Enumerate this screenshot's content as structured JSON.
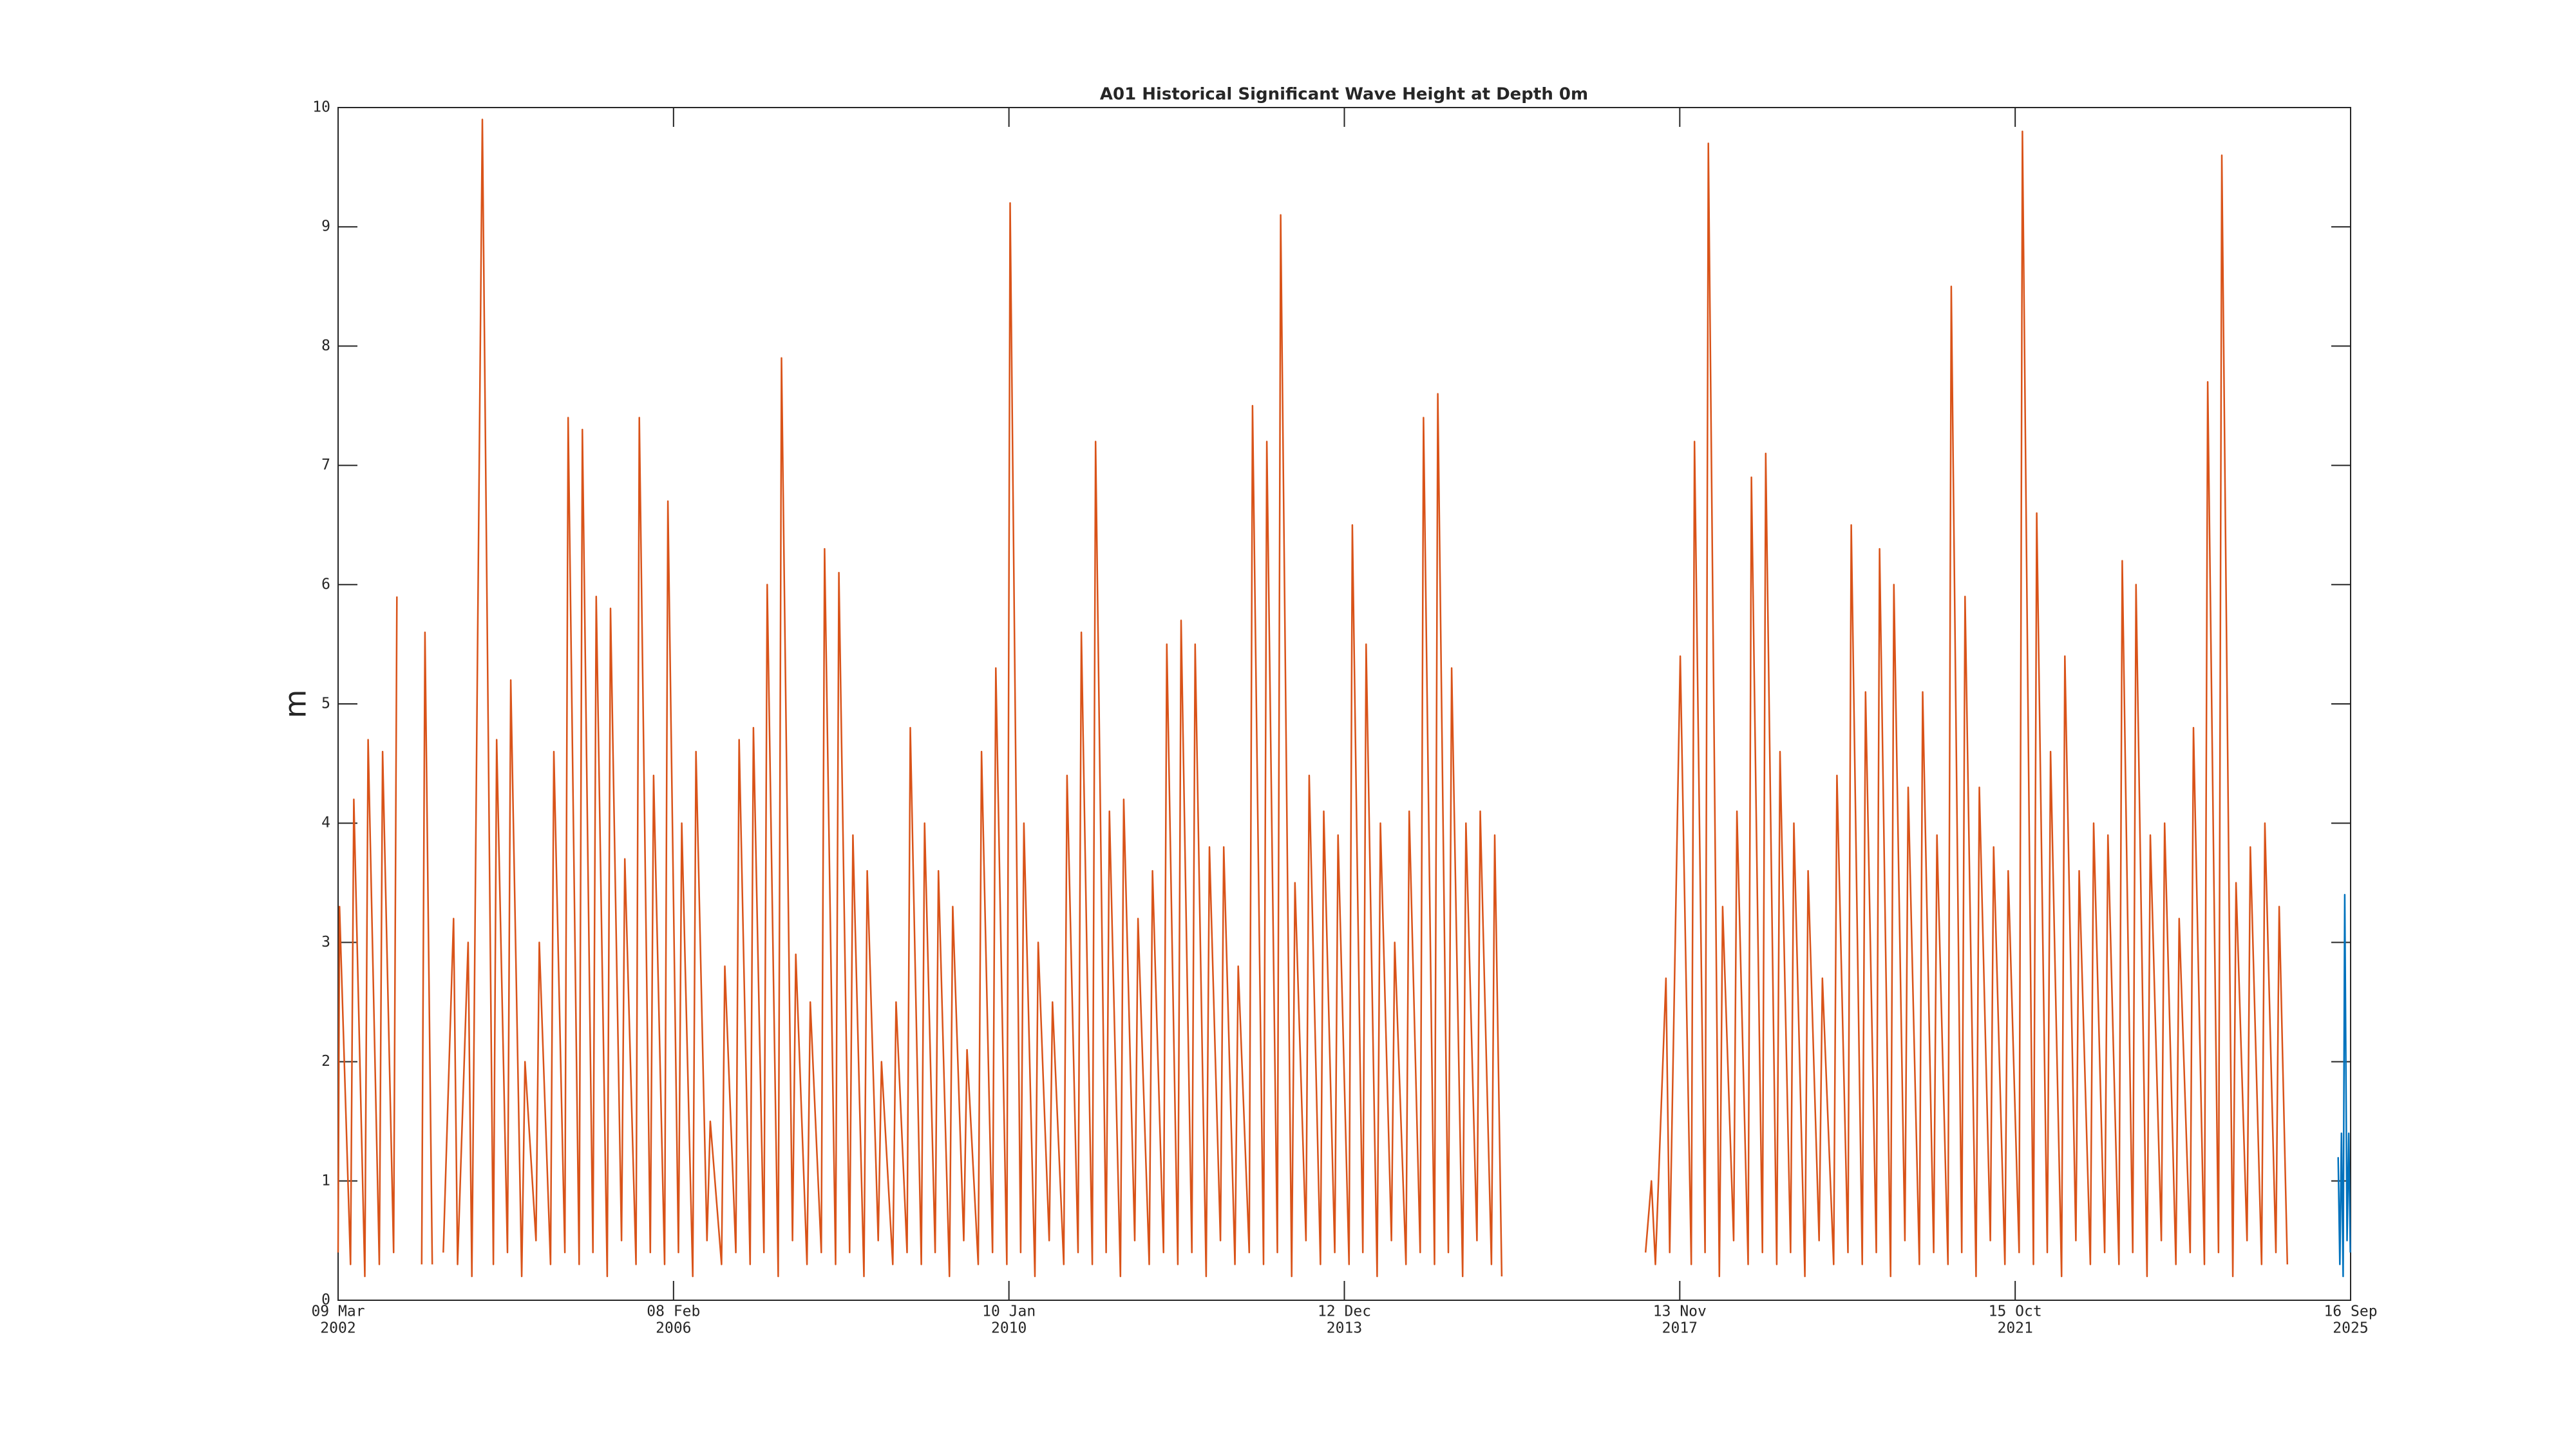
{
  "chart_data": {
    "type": "line",
    "title": "A01 Historical Significant Wave Height at Depth 0m",
    "ylabel": "m",
    "xlim": [
      "2002-03-09",
      "2025-09-16"
    ],
    "xticks": [
      {
        "value": "2002-03-09",
        "label": [
          "09 Mar",
          "2002"
        ]
      },
      {
        "value": "2006-02-08",
        "label": [
          "08 Feb",
          "2006"
        ]
      },
      {
        "value": "2010-01-10",
        "label": [
          "10 Jan",
          "2010"
        ]
      },
      {
        "value": "2013-12-12",
        "label": [
          "12 Dec",
          "2013"
        ]
      },
      {
        "value": "2017-11-13",
        "label": [
          "13 Nov",
          "2017"
        ]
      },
      {
        "value": "2021-10-15",
        "label": [
          "15 Oct",
          "2021"
        ]
      },
      {
        "value": "2025-09-16",
        "label": [
          "16 Sep",
          "2025"
        ]
      }
    ],
    "ylim": [
      0,
      10
    ],
    "yticks": [
      0,
      1,
      2,
      3,
      4,
      5,
      6,
      7,
      8,
      9,
      10
    ],
    "series": [
      {
        "color": "#d95319",
        "x": [
          "2002-03-09",
          "2002-03-15",
          "2002-05-01",
          "2002-05-15",
          "2002-07-01",
          "2002-07-15",
          "2002-09-01",
          "2002-09-15",
          "2002-11-01",
          "2002-11-15",
          "2003-01-01",
          "2003-03-01",
          "2003-03-15",
          "2003-04-15",
          "2003-05-01",
          "2003-06-01",
          "2003-07-15",
          "2003-08-01",
          "2003-09-15",
          "2003-10-01",
          "2003-11-15",
          "2004-01-01",
          "2004-01-15",
          "2004-03-01",
          "2004-03-15",
          "2004-05-01",
          "2004-05-15",
          "2004-07-01",
          "2004-07-15",
          "2004-09-01",
          "2004-09-15",
          "2004-11-01",
          "2004-11-15",
          "2005-01-01",
          "2005-01-15",
          "2005-03-01",
          "2005-03-15",
          "2005-05-01",
          "2005-05-15",
          "2005-07-01",
          "2005-07-15",
          "2005-09-01",
          "2005-09-15",
          "2005-11-01",
          "2005-11-15",
          "2006-01-01",
          "2006-01-15",
          "2006-03-01",
          "2006-03-15",
          "2006-05-01",
          "2006-05-15",
          "2006-07-01",
          "2006-07-15",
          "2006-09-01",
          "2006-09-15",
          "2006-11-01",
          "2006-11-15",
          "2007-01-01",
          "2007-01-15",
          "2007-03-01",
          "2007-03-15",
          "2007-05-01",
          "2007-05-15",
          "2007-07-01",
          "2007-07-15",
          "2007-09-01",
          "2007-09-15",
          "2007-11-01",
          "2007-11-15",
          "2008-01-01",
          "2008-01-15",
          "2008-03-01",
          "2008-03-15",
          "2008-05-01",
          "2008-05-15",
          "2008-07-01",
          "2008-07-15",
          "2008-09-01",
          "2008-09-15",
          "2008-11-01",
          "2008-11-15",
          "2009-01-01",
          "2009-01-15",
          "2009-03-01",
          "2009-03-15",
          "2009-05-01",
          "2009-05-15",
          "2009-07-01",
          "2009-07-15",
          "2009-09-01",
          "2009-09-15",
          "2009-11-01",
          "2009-11-15",
          "2010-01-01",
          "2010-01-15",
          "2010-03-01",
          "2010-03-15",
          "2010-05-01",
          "2010-05-15",
          "2010-07-01",
          "2010-07-15",
          "2010-09-01",
          "2010-09-15",
          "2010-11-01",
          "2010-11-15",
          "2011-01-01",
          "2011-01-15",
          "2011-03-01",
          "2011-03-15",
          "2011-05-01",
          "2011-05-15",
          "2011-07-01",
          "2011-07-15",
          "2011-09-01",
          "2011-09-15",
          "2011-11-01",
          "2011-11-15",
          "2012-01-01",
          "2012-01-15",
          "2012-03-01",
          "2012-03-15",
          "2012-05-01",
          "2012-05-15",
          "2012-07-01",
          "2012-07-15",
          "2012-09-01",
          "2012-09-15",
          "2012-11-01",
          "2012-11-15",
          "2013-01-01",
          "2013-01-15",
          "2013-03-01",
          "2013-03-15",
          "2013-05-01",
          "2013-05-15",
          "2013-07-01",
          "2013-07-15",
          "2013-09-01",
          "2013-09-15",
          "2013-11-01",
          "2013-11-15",
          "2014-01-01",
          "2014-01-15",
          "2014-03-01",
          "2014-03-15",
          "2014-05-01",
          "2014-05-15",
          "2014-07-01",
          "2014-07-15",
          "2014-09-01",
          "2014-09-15",
          "2014-11-01",
          "2014-11-15",
          "2015-01-01",
          "2015-01-15",
          "2015-03-01",
          "2015-03-15",
          "2015-05-01",
          "2015-05-15",
          "2015-07-01",
          "2015-07-15",
          "2015-09-01",
          "2015-09-15",
          "2015-10-15",
          "2015-11-01",
          "2017-06-20",
          "2017-07-15",
          "2017-08-01",
          "2017-09-15",
          "2017-10-01",
          "2017-11-15",
          "2018-01-01",
          "2018-01-15",
          "2018-03-01",
          "2018-03-15",
          "2018-05-01",
          "2018-05-15",
          "2018-07-01",
          "2018-07-15",
          "2018-09-01",
          "2018-09-15",
          "2018-11-01",
          "2018-11-15",
          "2019-01-01",
          "2019-01-15",
          "2019-03-01",
          "2019-03-15",
          "2019-05-01",
          "2019-05-15",
          "2019-07-01",
          "2019-07-15",
          "2019-09-01",
          "2019-09-15",
          "2019-11-01",
          "2019-11-15",
          "2020-01-01",
          "2020-01-15",
          "2020-03-01",
          "2020-03-15",
          "2020-05-01",
          "2020-05-15",
          "2020-07-01",
          "2020-07-15",
          "2020-09-01",
          "2020-09-15",
          "2020-11-01",
          "2020-11-15",
          "2021-01-01",
          "2021-01-15",
          "2021-03-01",
          "2021-03-15",
          "2021-05-01",
          "2021-05-15",
          "2021-07-01",
          "2021-07-15",
          "2021-09-01",
          "2021-09-15",
          "2021-11-01",
          "2021-11-15",
          "2022-01-01",
          "2022-01-15",
          "2022-03-01",
          "2022-03-15",
          "2022-05-01",
          "2022-05-15",
          "2022-07-01",
          "2022-07-15",
          "2022-09-01",
          "2022-09-15",
          "2022-11-01",
          "2022-11-15",
          "2023-01-01",
          "2023-01-15",
          "2023-03-01",
          "2023-03-15",
          "2023-05-01",
          "2023-05-15",
          "2023-07-01",
          "2023-07-15",
          "2023-09-01",
          "2023-09-15",
          "2023-11-01",
          "2023-11-15",
          "2024-01-01",
          "2024-01-15",
          "2024-03-01",
          "2024-03-15",
          "2024-05-01",
          "2024-05-15",
          "2024-07-01",
          "2024-07-15",
          "2024-09-01",
          "2024-09-15",
          "2024-11-01",
          "2024-11-15",
          "2024-12-20"
        ],
        "values": [
          0.4,
          3.3,
          0.3,
          4.2,
          0.2,
          4.7,
          0.3,
          4.6,
          0.4,
          5.9,
          null,
          0.3,
          5.6,
          0.3,
          null,
          0.4,
          3.2,
          0.3,
          3.0,
          0.2,
          9.9,
          0.3,
          4.7,
          0.4,
          5.2,
          0.2,
          2.0,
          0.5,
          3.0,
          0.3,
          4.6,
          0.4,
          7.4,
          0.3,
          7.3,
          0.4,
          5.9,
          0.2,
          5.8,
          0.5,
          3.7,
          0.3,
          7.4,
          0.4,
          4.4,
          0.3,
          6.7,
          0.4,
          4.0,
          0.2,
          4.6,
          0.5,
          1.5,
          0.3,
          2.8,
          0.4,
          4.7,
          0.3,
          4.8,
          0.4,
          6.0,
          0.2,
          7.9,
          0.5,
          2.9,
          0.3,
          2.5,
          0.4,
          6.3,
          0.3,
          6.1,
          0.4,
          3.9,
          0.2,
          3.6,
          0.5,
          2.0,
          0.3,
          2.5,
          0.4,
          4.8,
          0.3,
          4.0,
          0.4,
          3.6,
          0.2,
          3.3,
          0.5,
          2.1,
          0.3,
          4.6,
          0.4,
          5.3,
          0.3,
          9.2,
          0.4,
          4.0,
          0.2,
          3.0,
          0.5,
          2.5,
          0.3,
          4.4,
          0.4,
          5.6,
          0.3,
          7.2,
          0.4,
          4.1,
          0.2,
          4.2,
          0.5,
          3.2,
          0.3,
          3.6,
          0.4,
          5.5,
          0.3,
          5.7,
          0.4,
          5.5,
          0.2,
          3.8,
          0.5,
          3.8,
          0.3,
          2.8,
          0.4,
          7.5,
          0.3,
          7.2,
          0.4,
          9.1,
          0.2,
          3.5,
          0.5,
          4.4,
          0.3,
          4.1,
          0.4,
          3.9,
          0.3,
          6.5,
          0.4,
          5.5,
          0.2,
          4.0,
          0.5,
          3.0,
          0.3,
          4.1,
          0.4,
          7.4,
          0.3,
          7.6,
          0.4,
          5.3,
          0.2,
          4.0,
          0.5,
          4.1,
          0.3,
          3.9,
          0.2,
          null,
          0.4,
          1.0,
          0.3,
          2.7,
          0.4,
          5.4,
          0.3,
          7.2,
          0.4,
          9.7,
          0.2,
          3.3,
          0.5,
          4.1,
          0.3,
          6.9,
          0.4,
          7.1,
          0.3,
          4.6,
          0.4,
          4.0,
          0.2,
          3.6,
          0.5,
          2.7,
          0.3,
          4.4,
          0.4,
          6.5,
          0.3,
          5.1,
          0.4,
          6.3,
          0.2,
          6.0,
          0.5,
          4.3,
          0.3,
          5.1,
          0.4,
          3.9,
          0.3,
          8.5,
          0.4,
          5.9,
          0.2,
          4.3,
          0.5,
          3.8,
          0.3,
          3.6,
          0.4,
          9.8,
          0.3,
          6.6,
          0.4,
          4.6,
          0.2,
          5.4,
          0.5,
          3.6,
          0.3,
          4.0,
          0.4,
          3.9,
          0.3,
          6.2,
          0.4,
          6.0,
          0.2,
          3.9,
          0.5,
          4.0,
          0.3,
          3.2,
          0.4,
          4.8,
          0.3,
          7.7,
          0.4,
          9.6,
          0.2,
          3.5,
          0.5,
          3.8,
          0.3,
          4.0,
          0.4,
          3.3,
          0.3
        ]
      },
      {
        "color": "#0072bd",
        "x": [
          "2025-07-25",
          "2025-08-01",
          "2025-08-08",
          "2025-08-15",
          "2025-08-22",
          "2025-09-01",
          "2025-09-08",
          "2025-09-15"
        ],
        "values": [
          1.2,
          0.3,
          1.4,
          0.2,
          3.4,
          0.5,
          1.4,
          0.4
        ]
      }
    ]
  }
}
